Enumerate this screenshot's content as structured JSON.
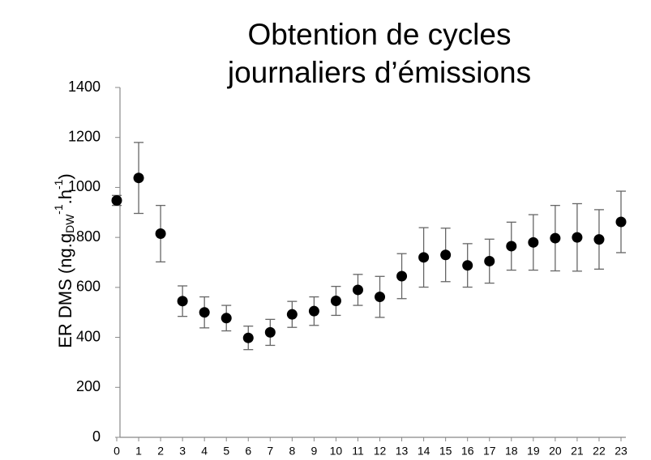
{
  "chart_data": {
    "type": "scatter",
    "title": [
      "Obtention de cycles",
      "journaliers d’émissions"
    ],
    "y_label": [
      "ER DMS (ng.g",
      "DW",
      "-1",
      ".h",
      "-1",
      ")"
    ],
    "x": [
      0,
      1,
      2,
      3,
      4,
      5,
      6,
      7,
      8,
      9,
      10,
      11,
      12,
      13,
      14,
      15,
      16,
      17,
      18,
      19,
      20,
      21,
      22,
      23
    ],
    "values": [
      948,
      1038,
      815,
      545,
      500,
      477,
      398,
      420,
      492,
      505,
      546,
      590,
      562,
      645,
      720,
      730,
      688,
      705,
      765,
      780,
      797,
      800,
      792,
      862
    ],
    "errors": [
      20,
      142,
      113,
      61,
      62,
      51,
      47,
      52,
      52,
      57,
      58,
      62,
      82,
      90,
      119,
      107,
      87,
      88,
      96,
      111,
      131,
      135,
      119,
      123
    ],
    "color": "#000000",
    "xlim": [
      0,
      23
    ],
    "xticks": [
      0,
      1,
      2,
      3,
      4,
      5,
      6,
      7,
      8,
      9,
      10,
      11,
      12,
      13,
      14,
      15,
      16,
      17,
      18,
      19,
      20,
      21,
      22,
      23
    ],
    "ylim": [
      0,
      1400
    ],
    "yticks": [
      0,
      200,
      400,
      600,
      800,
      1000,
      1200,
      1400
    ],
    "grid": false
  }
}
